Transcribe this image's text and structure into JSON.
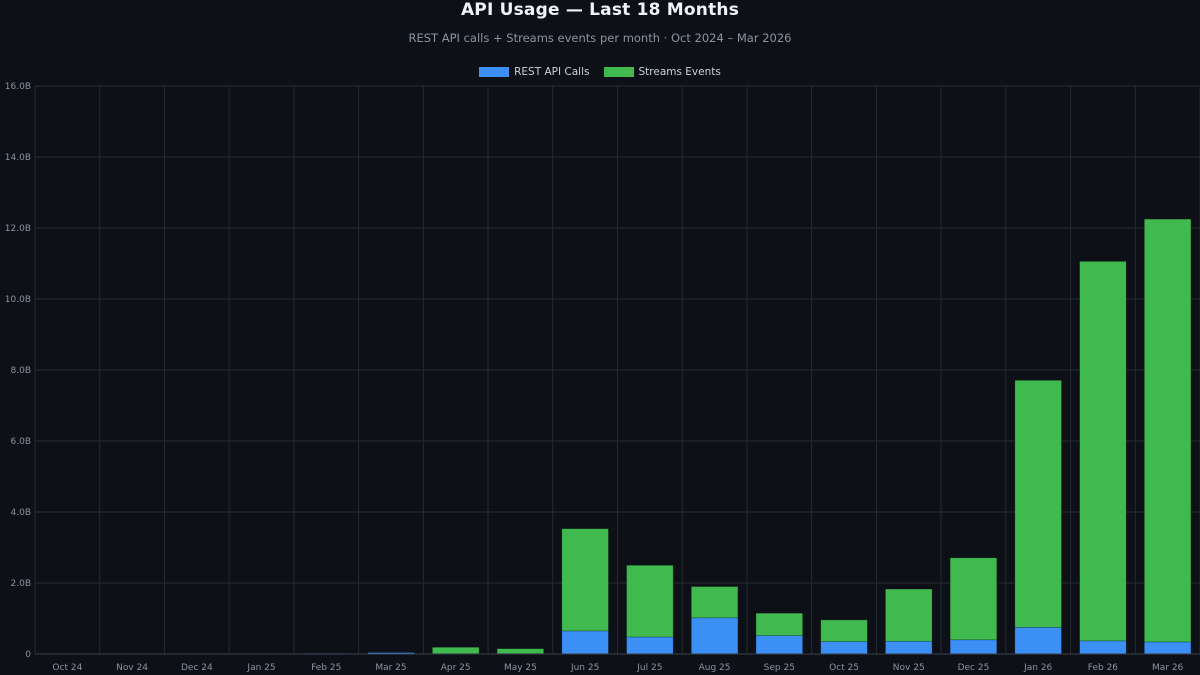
{
  "title": "API Usage — Last 18 Months",
  "subtitle": "REST API calls + Streams events per month · Oct 2024 – Mar 2026",
  "colors": {
    "background": "#0d1017",
    "grid": "#262b33",
    "rest": "#3b8ff5",
    "streams": "#40b94e"
  },
  "legend": [
    {
      "name": "REST API Calls",
      "color": "#3b8ff5"
    },
    {
      "name": "Streams Events",
      "color": "#40b94e"
    }
  ],
  "chart_data": {
    "type": "bar",
    "stacked": true,
    "title": "API Usage — Last 18 Months",
    "subtitle": "REST API calls + Streams events per month · Oct 2024 – Mar 2026",
    "xlabel": "",
    "ylabel": "",
    "ylim": [
      0,
      16
    ],
    "y_unit": "B",
    "y_ticks": [
      "0",
      "2.0B",
      "4.0B",
      "6.0B",
      "8.0B",
      "10.0B",
      "12.0B",
      "14.0B",
      "16.0B"
    ],
    "grid": true,
    "legend_position": "top-center",
    "categories": [
      "Oct 24",
      "Nov 24",
      "Dec 24",
      "Jan 25",
      "Feb 25",
      "Mar 25",
      "Apr 25",
      "May 25",
      "Jun 25",
      "Jul 25",
      "Aug 25",
      "Sep 25",
      "Oct 25",
      "Nov 25",
      "Dec 25",
      "Jan 26",
      "Feb 26",
      "Mar 26"
    ],
    "series": [
      {
        "name": "REST API Calls",
        "color": "#3b8ff5",
        "values": [
          0,
          0,
          0,
          0,
          0.02,
          0.04,
          0.01,
          0.01,
          0.65,
          0.48,
          1.02,
          0.52,
          0.35,
          0.36,
          0.4,
          0.75,
          0.37,
          0.34
        ]
      },
      {
        "name": "Streams Events",
        "color": "#40b94e",
        "values": [
          0,
          0,
          0,
          0,
          0,
          0,
          0.18,
          0.14,
          2.88,
          2.02,
          0.88,
          0.63,
          0.61,
          1.47,
          2.31,
          6.96,
          10.69,
          11.91
        ]
      }
    ]
  }
}
